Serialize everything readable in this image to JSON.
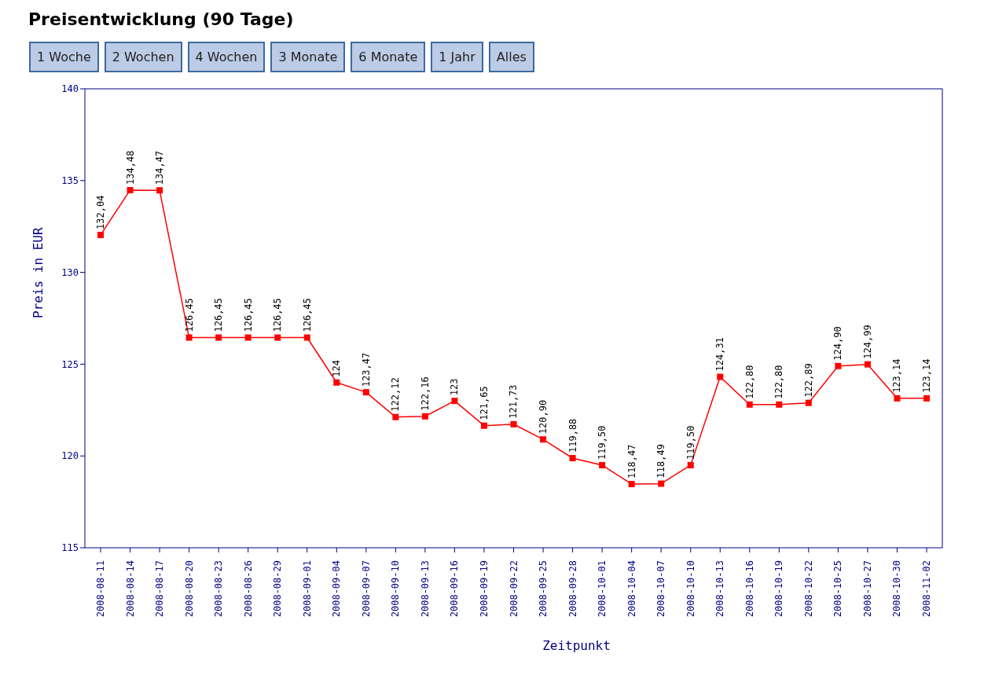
{
  "chart_data": {
    "type": "line",
    "title": "Preisentwicklung (90 Tage)",
    "xlabel": "Zeitpunkt",
    "ylabel": "Preis in EUR",
    "annotations": [
      "1 Woche",
      "2 Wochen",
      "4 Wochen",
      "3 Monate",
      "6 Monate",
      "1 Jahr",
      "Alles"
    ],
    "categories": [
      "2008-08-11",
      "2008-08-14",
      "2008-08-17",
      "2008-08-20",
      "2008-08-23",
      "2008-08-26",
      "2008-08-29",
      "2008-09-01",
      "2008-09-04",
      "2008-09-07",
      "2008-09-10",
      "2008-09-13",
      "2008-09-16",
      "2008-09-19",
      "2008-09-22",
      "2008-09-25",
      "2008-09-28",
      "2008-10-01",
      "2008-10-04",
      "2008-10-07",
      "2008-10-10",
      "2008-10-13",
      "2008-10-16",
      "2008-10-19",
      "2008-10-22",
      "2008-10-25",
      "2008-10-27",
      "2008-10-30",
      "2008-11-02"
    ],
    "series": [
      {
        "color": "#ff0000",
        "values": [
          132.04,
          134.48,
          134.47,
          126.45,
          126.45,
          126.45,
          126.45,
          126.45,
          124,
          123.47,
          122.12,
          122.16,
          123,
          121.65,
          121.73,
          120.9,
          119.88,
          119.5,
          118.47,
          118.49,
          119.5,
          124.31,
          122.8,
          122.8,
          122.89,
          124.9,
          124.99,
          123.14,
          123.14
        ],
        "value_labels": [
          "132,04",
          "134,48",
          "134,47",
          "126,45",
          "126,45",
          "126,45",
          "126,45",
          "126,45",
          "124",
          "123,47",
          "122,12",
          "122,16",
          "123",
          "121,65",
          "121,73",
          "120,90",
          "119,88",
          "119,50",
          "118,47",
          "118,49",
          "119,50",
          "124,31",
          "122,80",
          "122,80",
          "122,89",
          "124,90",
          "124,99",
          "123,14",
          "123,14"
        ]
      }
    ],
    "ylim": [
      115,
      140
    ],
    "yticks": [
      115,
      120,
      125,
      130,
      135,
      140
    ],
    "marker": "square",
    "line_style": "solid"
  }
}
